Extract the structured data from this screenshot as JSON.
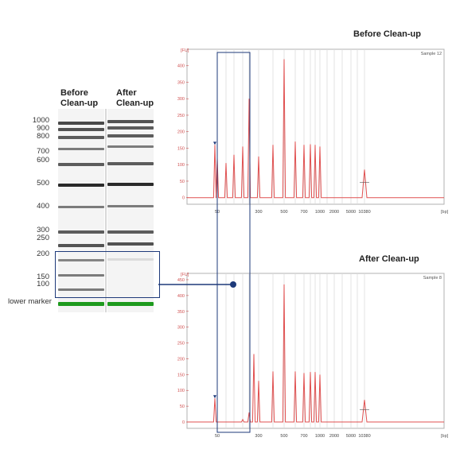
{
  "gel": {
    "lanes": [
      {
        "label_line1": "Before",
        "label_line2": "Clean-up"
      },
      {
        "label_line1": "After",
        "label_line2": "Clean-up"
      }
    ],
    "size_labels": [
      "1000",
      "900",
      "800",
      "700",
      "600",
      "500",
      "400",
      "300",
      "250",
      "200",
      "150",
      "100"
    ],
    "lower_marker_label": "lower marker",
    "band_color": "#2a2a2a",
    "marker_color": "#1e9a1e"
  },
  "chart_data": [
    {
      "type": "line",
      "title": "Before Clean-up",
      "sample_label": "Sample 12",
      "ylabel": "[FU]",
      "xlabel": "[bp]",
      "y_ticks": [
        0,
        50,
        100,
        150,
        200,
        250,
        300,
        350,
        400
      ],
      "ylim": [
        -20,
        450
      ],
      "x_ticks": [
        "50",
        "300",
        "500",
        "700",
        "1000",
        "2000",
        "5000",
        "10380"
      ],
      "line_color": "#e05050",
      "peaks": [
        {
          "size": 35,
          "height": 160
        },
        {
          "size": 50,
          "height": 120
        },
        {
          "size": 100,
          "height": 105
        },
        {
          "size": 150,
          "height": 130
        },
        {
          "size": 200,
          "height": 155
        },
        {
          "size": 250,
          "height": 300
        },
        {
          "size": 300,
          "height": 125
        },
        {
          "size": 400,
          "height": 160
        },
        {
          "size": 500,
          "height": 420
        },
        {
          "size": 600,
          "height": 170
        },
        {
          "size": 700,
          "height": 160
        },
        {
          "size": 800,
          "height": 162
        },
        {
          "size": 900,
          "height": 160
        },
        {
          "size": 1000,
          "height": 155
        },
        {
          "size": 10380,
          "height": 85
        }
      ]
    },
    {
      "type": "line",
      "title": "After Clean-up",
      "sample_label": "Sample 8",
      "ylabel": "[FU]",
      "xlabel": "[bp]",
      "y_ticks": [
        0,
        50,
        100,
        150,
        200,
        250,
        300,
        350,
        400,
        450
      ],
      "ylim": [
        -20,
        470
      ],
      "x_ticks": [
        "50",
        "300",
        "500",
        "700",
        "1000",
        "2000",
        "5000",
        "10380"
      ],
      "line_color": "#e05050",
      "peaks": [
        {
          "size": 35,
          "height": 75
        },
        {
          "size": 200,
          "height": 8
        },
        {
          "size": 250,
          "height": 30
        },
        {
          "size": 280,
          "height": 215
        },
        {
          "size": 300,
          "height": 130
        },
        {
          "size": 400,
          "height": 160
        },
        {
          "size": 500,
          "height": 435
        },
        {
          "size": 600,
          "height": 160
        },
        {
          "size": 700,
          "height": 155
        },
        {
          "size": 800,
          "height": 158
        },
        {
          "size": 900,
          "height": 158
        },
        {
          "size": 1000,
          "height": 150
        },
        {
          "size": 10380,
          "height": 70
        }
      ]
    }
  ]
}
